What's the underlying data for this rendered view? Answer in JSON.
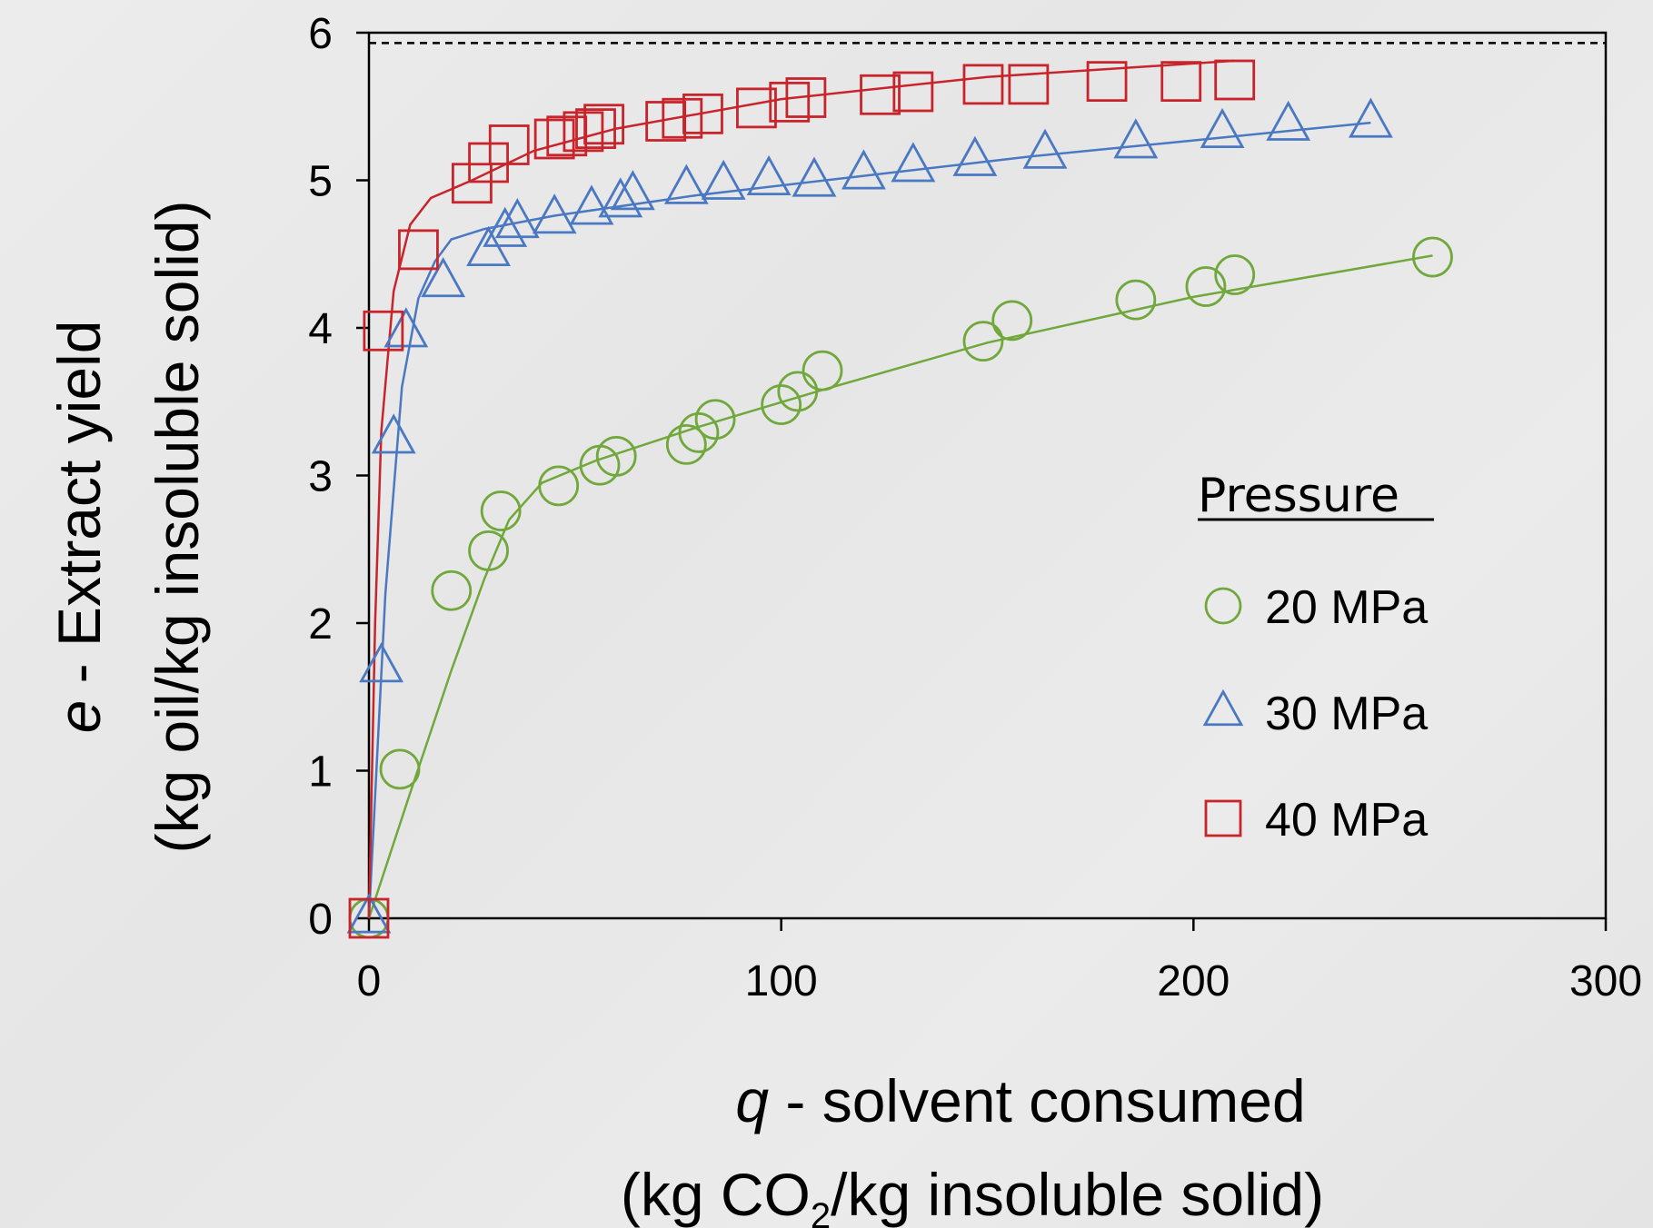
{
  "chart_data": {
    "type": "scatter",
    "title": "",
    "xlabel_prefix": "q",
    "xlabel_main": " - solvent consumed",
    "xlabel_line2_a": "(kg CO",
    "xlabel_line2_sub": "2",
    "xlabel_line2_b": "/kg insoluble solid)",
    "ylabel_prefix": "e",
    "ylabel_main": " - Extract yield",
    "ylabel_line2": "(kg oil/kg insoluble solid)",
    "xlim": [
      0,
      300
    ],
    "ylim": [
      0,
      6
    ],
    "x_ticks": [
      0,
      100,
      200,
      300
    ],
    "y_ticks": [
      0,
      1,
      2,
      3,
      4,
      5,
      6
    ],
    "x_tick_labels": [
      "0",
      "100",
      "200",
      "300"
    ],
    "y_tick_labels": [
      "0",
      "1",
      "2",
      "3",
      "4",
      "5",
      "6"
    ],
    "reference_line": {
      "y": 5.93,
      "style": "dashed",
      "color": "#000000"
    },
    "legend": {
      "title": "Pressure",
      "placement": "center-right"
    },
    "grid": false,
    "series": [
      {
        "name": "20 MPa",
        "marker": "circle",
        "color": "#70a83c",
        "points": [
          [
            0,
            0
          ],
          [
            7.5,
            1.01
          ],
          [
            20,
            2.22
          ],
          [
            29,
            2.49
          ],
          [
            32,
            2.76
          ],
          [
            46,
            2.93
          ],
          [
            56,
            3.07
          ],
          [
            60,
            3.13
          ],
          [
            77,
            3.21
          ],
          [
            80,
            3.29
          ],
          [
            84,
            3.38
          ],
          [
            100,
            3.48
          ],
          [
            104,
            3.57
          ],
          [
            110,
            3.71
          ],
          [
            149,
            3.91
          ],
          [
            156,
            4.05
          ],
          [
            186,
            4.19
          ],
          [
            203,
            4.28
          ],
          [
            210,
            4.36
          ],
          [
            258,
            4.48
          ]
        ],
        "fit": [
          [
            0,
            0
          ],
          [
            10,
            0.85
          ],
          [
            20,
            1.68
          ],
          [
            28,
            2.3
          ],
          [
            34,
            2.7
          ],
          [
            42,
            2.95
          ],
          [
            55,
            3.1
          ],
          [
            80,
            3.33
          ],
          [
            110,
            3.58
          ],
          [
            150,
            3.9
          ],
          [
            200,
            4.21
          ],
          [
            258,
            4.49
          ]
        ]
      },
      {
        "name": "30 MPa",
        "marker": "triangle",
        "color": "#4a78c2",
        "points": [
          [
            0,
            0
          ],
          [
            3,
            1.7
          ],
          [
            6,
            3.25
          ],
          [
            9,
            3.97
          ],
          [
            18,
            4.31
          ],
          [
            29,
            4.52
          ],
          [
            33,
            4.65
          ],
          [
            36,
            4.71
          ],
          [
            45,
            4.74
          ],
          [
            54,
            4.8
          ],
          [
            61,
            4.85
          ],
          [
            64,
            4.9
          ],
          [
            77,
            4.94
          ],
          [
            86,
            4.97
          ],
          [
            97,
            5.0
          ],
          [
            108,
            4.99
          ],
          [
            120,
            5.04
          ],
          [
            132,
            5.09
          ],
          [
            147,
            5.13
          ],
          [
            164,
            5.18
          ],
          [
            186,
            5.25
          ],
          [
            207,
            5.32
          ],
          [
            223,
            5.37
          ],
          [
            243,
            5.39
          ]
        ],
        "fit": [
          [
            0,
            0
          ],
          [
            4,
            2.2
          ],
          [
            8,
            3.6
          ],
          [
            12,
            4.2
          ],
          [
            16,
            4.45
          ],
          [
            20,
            4.6
          ],
          [
            28,
            4.67
          ],
          [
            45,
            4.76
          ],
          [
            80,
            4.9
          ],
          [
            120,
            5.03
          ],
          [
            160,
            5.16
          ],
          [
            200,
            5.27
          ],
          [
            243,
            5.39
          ]
        ]
      },
      {
        "name": "40 MPa",
        "marker": "square",
        "color": "#c8242b",
        "points": [
          [
            0,
            0
          ],
          [
            3.5,
            3.98
          ],
          [
            12,
            4.53
          ],
          [
            25,
            4.98
          ],
          [
            29,
            5.12
          ],
          [
            34,
            5.24
          ],
          [
            45,
            5.28
          ],
          [
            48,
            5.3
          ],
          [
            52,
            5.33
          ],
          [
            55,
            5.35
          ],
          [
            57,
            5.38
          ],
          [
            72,
            5.4
          ],
          [
            76,
            5.42
          ],
          [
            81,
            5.45
          ],
          [
            94,
            5.49
          ],
          [
            102,
            5.53
          ],
          [
            106,
            5.56
          ],
          [
            124,
            5.58
          ],
          [
            132,
            5.6
          ],
          [
            149,
            5.65
          ],
          [
            160,
            5.65
          ],
          [
            179,
            5.67
          ],
          [
            197,
            5.67
          ],
          [
            210,
            5.68
          ]
        ],
        "fit": [
          [
            0,
            0
          ],
          [
            1.5,
            2.0
          ],
          [
            3,
            3.3
          ],
          [
            6,
            4.25
          ],
          [
            10,
            4.7
          ],
          [
            15,
            4.88
          ],
          [
            25,
            5.0
          ],
          [
            40,
            5.2
          ],
          [
            60,
            5.35
          ],
          [
            100,
            5.55
          ],
          [
            150,
            5.7
          ],
          [
            210,
            5.81
          ]
        ]
      }
    ]
  }
}
